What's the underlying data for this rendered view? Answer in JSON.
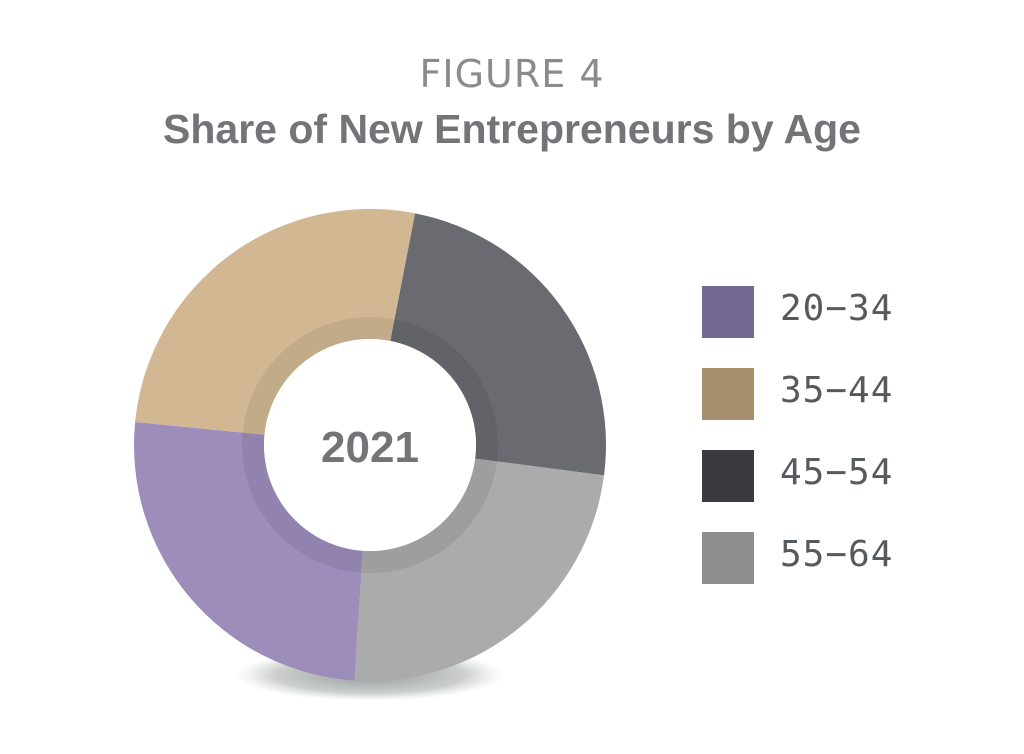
{
  "figure_label": "FIGURE 4",
  "chart_data": {
    "type": "pie",
    "title": "Share of New Entrepreneurs by Age",
    "center_label": "2021",
    "categories": [
      "20−34",
      "35−44",
      "45−54",
      "55−64"
    ],
    "values": [
      25.5,
      26.5,
      24.0,
      24.0
    ],
    "value_unit": "percent (estimated)",
    "slice_order_clockwise_from_top": [
      "45−54",
      "55−64",
      "20−34",
      "35−44"
    ],
    "slice_colors": {
      "20−34": "#9c8dbb",
      "35−44": "#d1b893",
      "45−54": "#6a6b70",
      "55−64": "#ababab"
    },
    "legend_colors": {
      "20−34": "#756891",
      "35−44": "#a58f6c",
      "45−54": "#3b3b3f",
      "55−64": "#8e8e8f"
    },
    "legend_position": "right"
  }
}
